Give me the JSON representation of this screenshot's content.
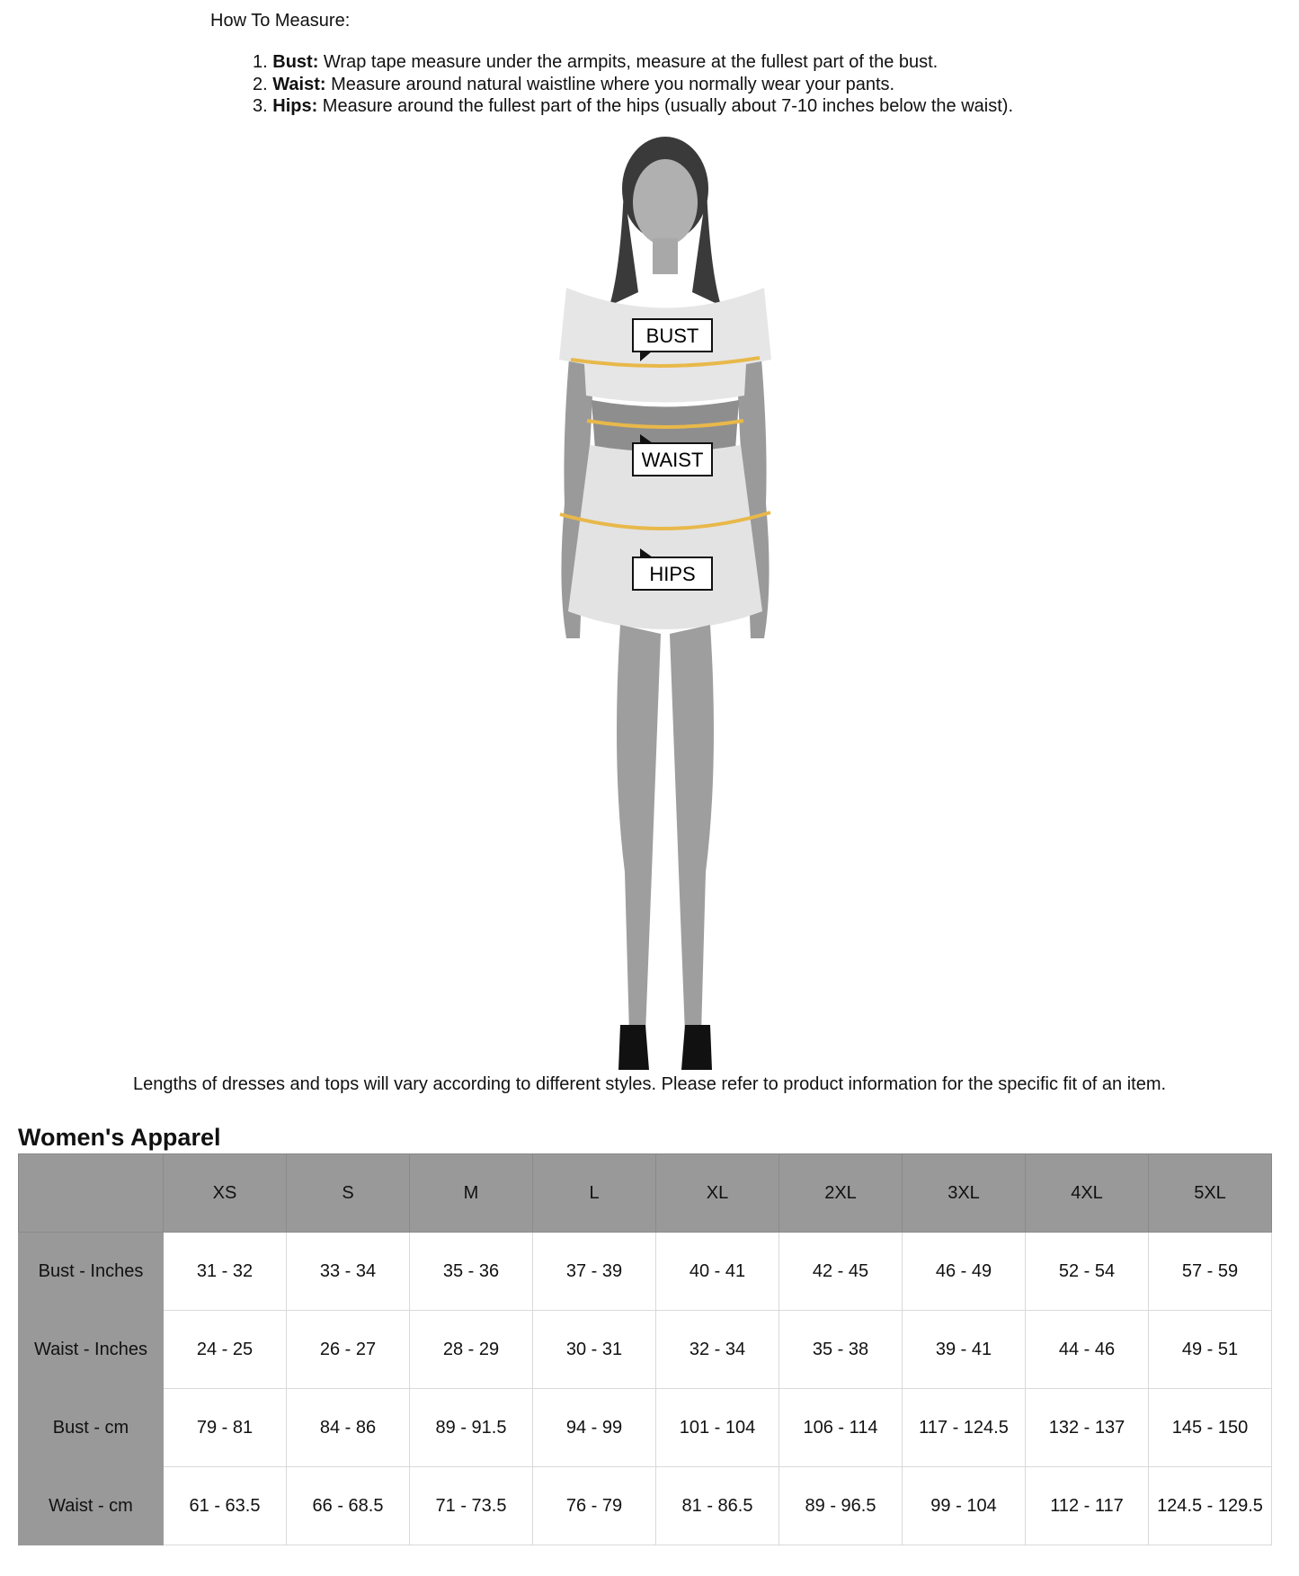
{
  "instructions": {
    "heading": "How To Measure:",
    "steps": [
      {
        "num": "1.",
        "term": "Bust:",
        "text": " Wrap tape measure under the armpits, measure at the fullest part of the bust."
      },
      {
        "num": "2.",
        "term": "Waist:",
        "text": " Measure around natural waistline where you normally wear your pants."
      },
      {
        "num": "3.",
        "term": "Hips:",
        "text": " Measure around the fullest part of the hips (usually about 7-10 inches below the waist)."
      }
    ]
  },
  "figure": {
    "labels": {
      "bust": "BUST",
      "waist": "WAIST",
      "hips": "HIPS"
    },
    "tape_color": "#e8b84a"
  },
  "caption": "Lengths of dresses and tops will vary according to different styles. Please refer to product information for the specific fit of an item.",
  "size_chart": {
    "title": "Women's Apparel",
    "columns": [
      "XS",
      "S",
      "M",
      "L",
      "XL",
      "2XL",
      "3XL",
      "4XL",
      "5XL"
    ],
    "rows": [
      {
        "label": "Bust - Inches",
        "values": [
          "31 - 32",
          "33 - 34",
          "35 - 36",
          "37 - 39",
          "40 - 41",
          "42 - 45",
          "46 - 49",
          "52 - 54",
          "57 - 59"
        ]
      },
      {
        "label": "Waist - Inches",
        "values": [
          "24 - 25",
          "26 - 27",
          "28 - 29",
          "30 - 31",
          "32 - 34",
          "35 - 38",
          "39 - 41",
          "44 - 46",
          "49 - 51"
        ]
      },
      {
        "label": "Bust - cm",
        "values": [
          "79 - 81",
          "84 - 86",
          "89 - 91.5",
          "94 - 99",
          "101 - 104",
          "106 - 114",
          "117 - 124.5",
          "132 - 137",
          "145 - 150"
        ]
      },
      {
        "label": "Waist - cm",
        "values": [
          "61 - 63.5",
          "66 - 68.5",
          "71 - 73.5",
          "76 - 79",
          "81 - 86.5",
          "89 - 96.5",
          "99 - 104",
          "112 - 117",
          "124.5 - 129.5"
        ]
      }
    ]
  }
}
